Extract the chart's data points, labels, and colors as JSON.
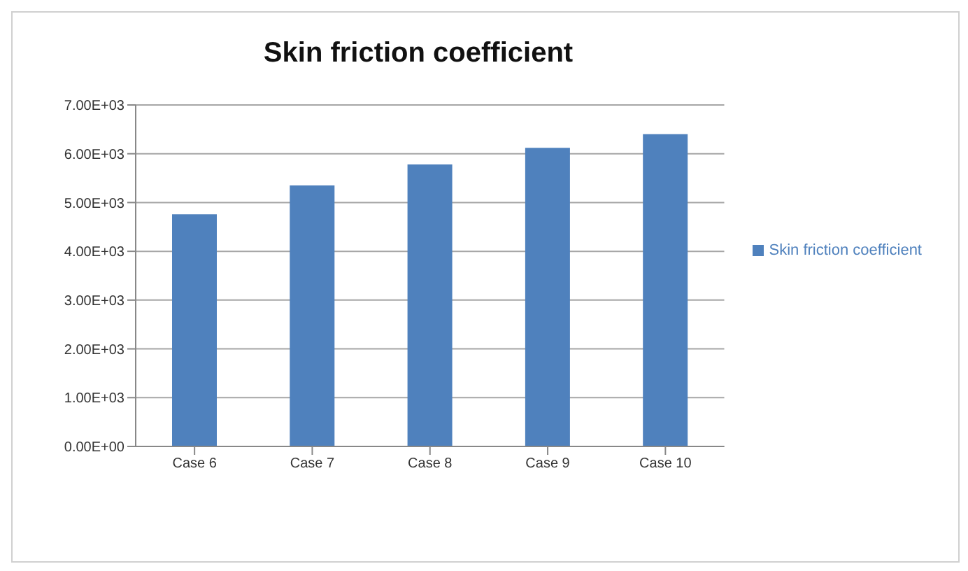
{
  "chart_data": {
    "type": "bar",
    "title": "Skin friction coefficient",
    "categories": [
      "Case 6",
      "Case 7",
      "Case 8",
      "Case 9",
      "Case 10"
    ],
    "series": [
      {
        "name": "Skin friction coefficient",
        "color": "#4f81bd",
        "values": [
          4760,
          5350,
          5780,
          6120,
          6400
        ]
      }
    ],
    "ylim": [
      0,
      7000
    ],
    "yticks": [
      {
        "value": 0,
        "label": "0.00E+00"
      },
      {
        "value": 1000,
        "label": "1.00E+03"
      },
      {
        "value": 2000,
        "label": "2.00E+03"
      },
      {
        "value": 3000,
        "label": "3.00E+03"
      },
      {
        "value": 4000,
        "label": "4.00E+03"
      },
      {
        "value": 5000,
        "label": "5.00E+03"
      },
      {
        "value": 6000,
        "label": "6.00E+03"
      },
      {
        "value": 7000,
        "label": "7.00E+03"
      }
    ],
    "grid": "y",
    "legend": "right"
  }
}
